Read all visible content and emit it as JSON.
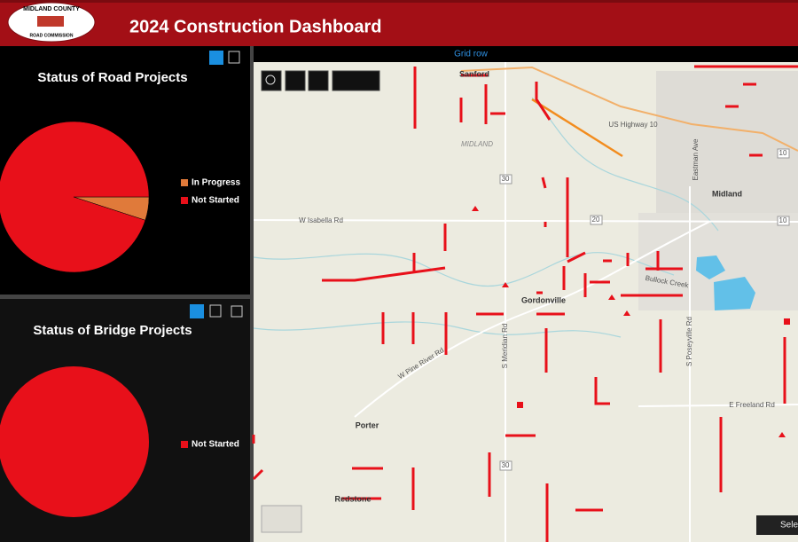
{
  "header": {
    "logo_top": "MIDLAND COUNTY",
    "logo_bottom": "ROAD COMMISSION",
    "title": "2024 Construction Dashboard"
  },
  "grid_row": "Grid row",
  "chart_data": [
    {
      "type": "pie",
      "title": "Status of Road Projects",
      "categories": [
        "In Progress",
        "Not Started"
      ],
      "values": [
        5,
        95
      ],
      "colors": [
        "#e07a3a",
        "#e8101a"
      ]
    },
    {
      "type": "pie",
      "title": "Status of Bridge Projects",
      "categories": [
        "Not Started"
      ],
      "values": [
        100
      ],
      "colors": [
        "#e8101a"
      ]
    }
  ],
  "map": {
    "labels": [
      "Sanford",
      "MIDLAND",
      "Midland",
      "Gordonville",
      "Porter",
      "Redstone",
      "W Isabella Rd",
      "W Pine River Rd",
      "S Meridian Rd",
      "S Poseyville Rd",
      "Eastman Ave",
      "E Freeland Rd",
      "US Highway 10",
      "Bullock Creek",
      "30",
      "20",
      "10",
      "10",
      "30"
    ],
    "select_button": "Selec"
  }
}
